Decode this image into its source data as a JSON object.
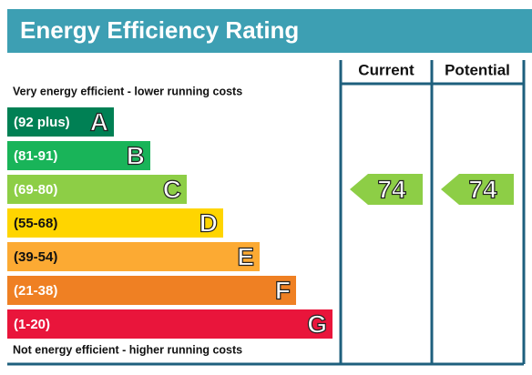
{
  "title": "Energy Efficiency Rating",
  "columns": [
    "Current",
    "Potential"
  ],
  "top_note": "Very energy efficient - lower running costs",
  "bottom_note": "Not energy efficient - higher running costs",
  "bands": [
    {
      "range": "(92 plus)",
      "letter": "A",
      "color": "#008054"
    },
    {
      "range": "(81-91)",
      "letter": "B",
      "color": "#19b459"
    },
    {
      "range": "(69-80)",
      "letter": "C",
      "color": "#8dce46"
    },
    {
      "range": "(55-68)",
      "letter": "D",
      "color": "#ffd500"
    },
    {
      "range": "(39-54)",
      "letter": "E",
      "color": "#fcaa33"
    },
    {
      "range": "(21-38)",
      "letter": "F",
      "color": "#ef8023"
    },
    {
      "range": "(1-20)",
      "letter": "G",
      "color": "#e9153b"
    }
  ],
  "ratings": [
    74,
    74
  ]
}
